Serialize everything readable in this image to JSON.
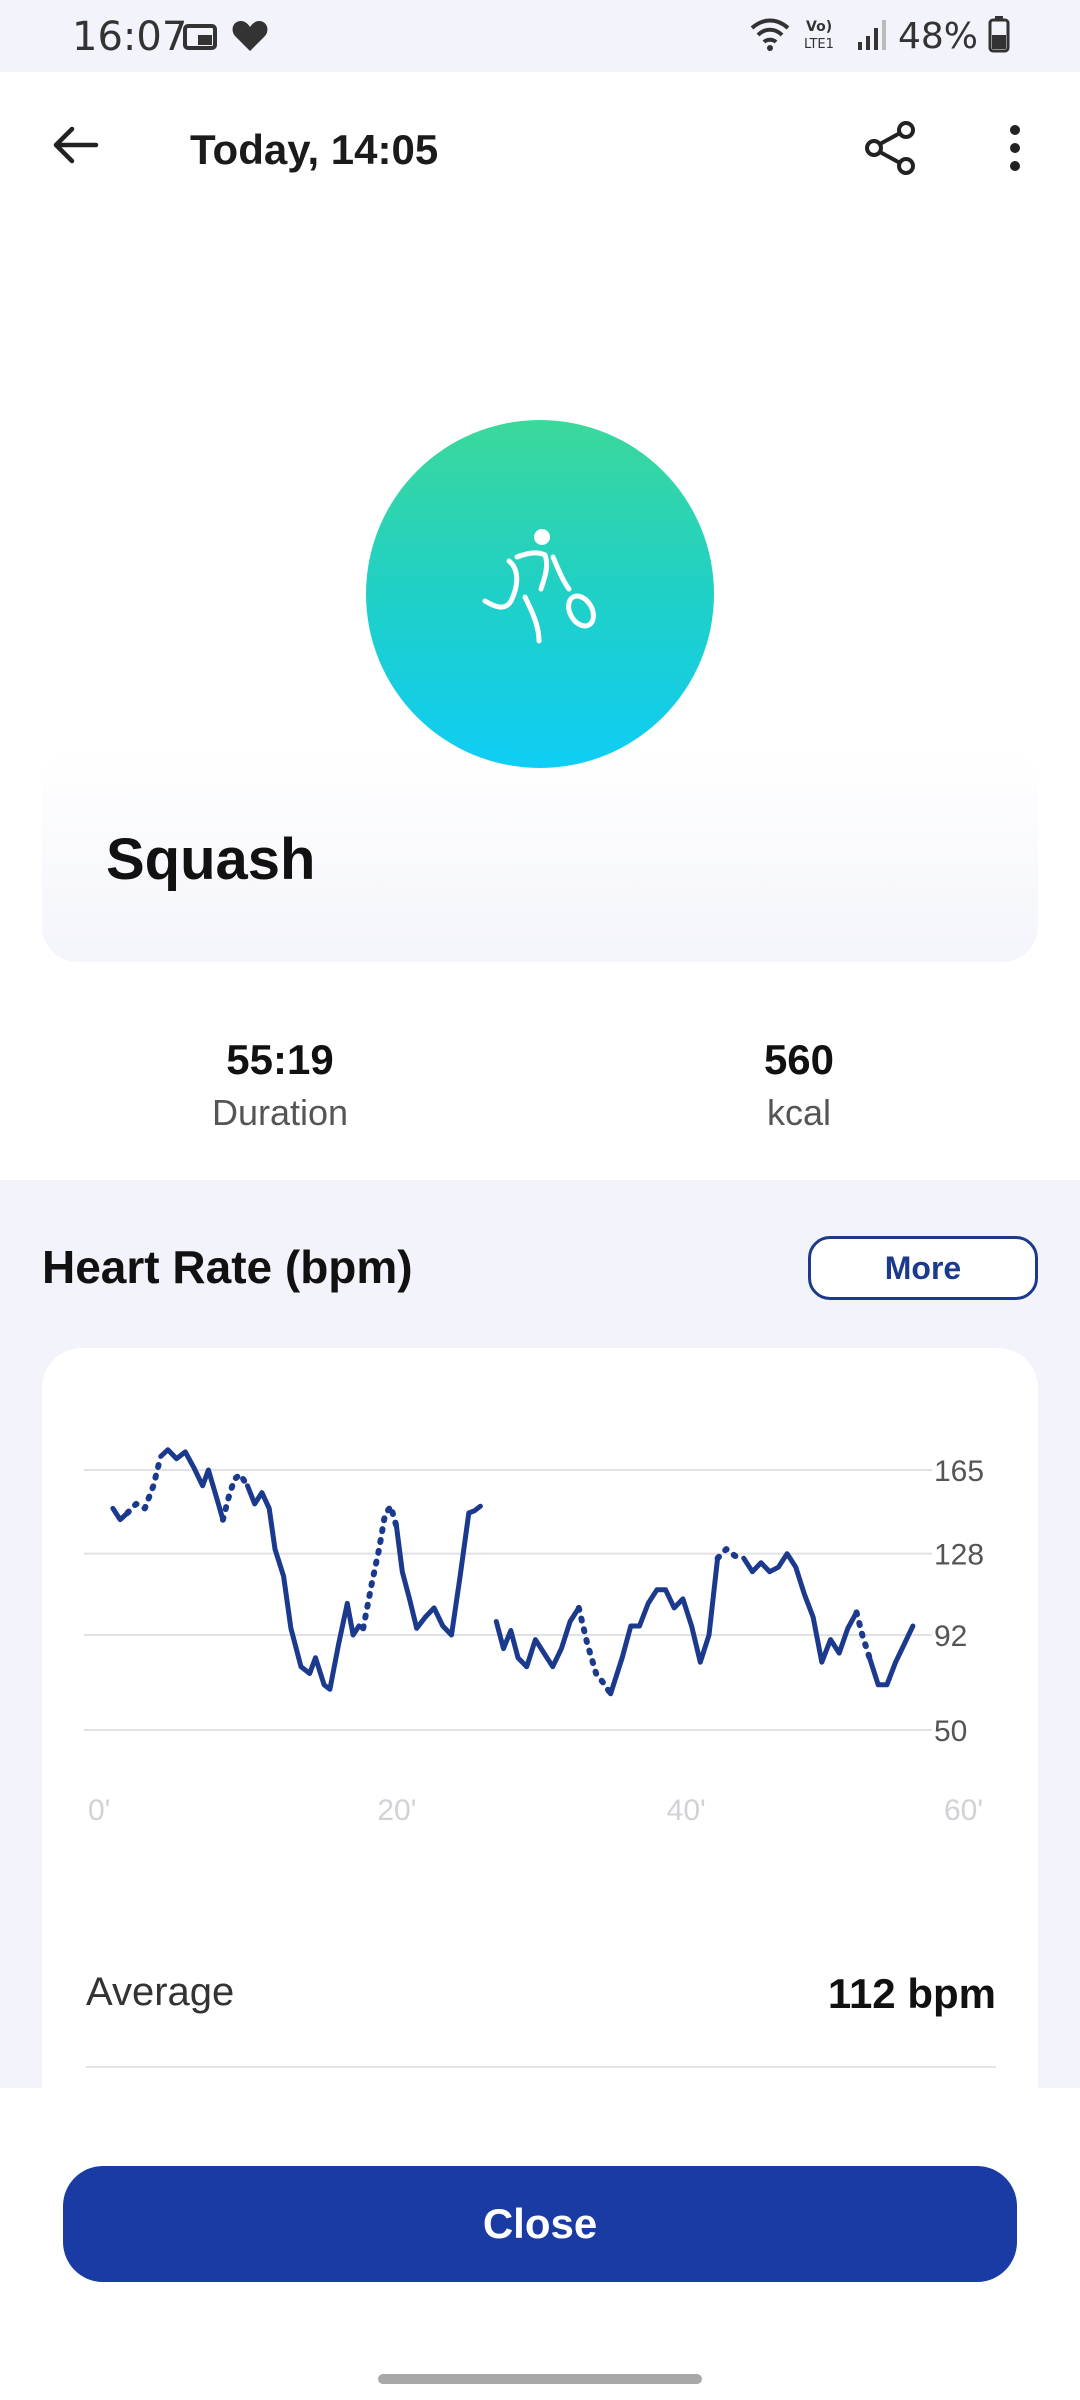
{
  "status_bar": {
    "time": "16:07",
    "battery": "48%",
    "icons": [
      "picture-in-notification-icon",
      "heart-icon",
      "wifi-icon",
      "volte-lte-icon",
      "signal-icon",
      "battery-icon"
    ],
    "network_label": "Vo) LTE1"
  },
  "app_bar": {
    "title": "Today, 14:05",
    "back_icon": "arrow-left-icon",
    "share_icon": "share-icon",
    "more_icon": "more-vertical-icon"
  },
  "activity": {
    "name": "Squash",
    "icon": "squash-player-icon",
    "gradient": [
      "#3bd89a",
      "#0fcdf5"
    ]
  },
  "stats": [
    {
      "value": "55:19",
      "label": "Duration"
    },
    {
      "value": "560",
      "label": "kcal"
    }
  ],
  "heart_rate": {
    "title": "Heart Rate (bpm)",
    "more_label": "More",
    "average_label": "Average",
    "average_value": "112 bpm"
  },
  "close_label": "Close",
  "colors": {
    "accent": "#1a3aa4",
    "line": "#1b3a8e",
    "background": "#f2f3fb"
  },
  "chart_data": {
    "type": "line",
    "x_unit": "minutes",
    "x_ticks": [
      "0'",
      "20'",
      "40'",
      "60'"
    ],
    "x_tick_values": [
      0,
      20,
      40,
      60
    ],
    "y_ticks": [
      50,
      92,
      128,
      165
    ],
    "xlim": [
      0,
      60
    ],
    "ylim": [
      50,
      165
    ],
    "grid": true,
    "series": [
      {
        "segments": [
          {
            "style": "solid",
            "points": [
              [
                2,
                148
              ],
              [
                2.5,
                143
              ],
              [
                3,
                146
              ]
            ]
          },
          {
            "style": "dotted",
            "points": [
              [
                3,
                146
              ],
              [
                3.6,
                150
              ],
              [
                4.2,
                148
              ],
              [
                4.8,
                158
              ],
              [
                5.3,
                171
              ]
            ]
          },
          {
            "style": "solid",
            "points": [
              [
                5.3,
                171
              ],
              [
                5.8,
                174
              ],
              [
                6.4,
                170
              ],
              [
                7,
                173
              ],
              [
                7.6,
                166
              ],
              [
                8.2,
                158
              ],
              [
                8.6,
                165
              ],
              [
                9.2,
                152
              ],
              [
                9.6,
                143
              ]
            ]
          },
          {
            "style": "dotted",
            "points": [
              [
                9.6,
                143
              ],
              [
                10,
                153
              ],
              [
                10.4,
                161
              ],
              [
                10.8,
                163
              ],
              [
                11.3,
                158
              ]
            ]
          },
          {
            "style": "solid",
            "points": [
              [
                11.3,
                158
              ],
              [
                11.8,
                150
              ],
              [
                12.3,
                155
              ],
              [
                12.8,
                148
              ],
              [
                13.2,
                130
              ],
              [
                13.8,
                118
              ],
              [
                14.3,
                95
              ],
              [
                15,
                78
              ],
              [
                15.6,
                75
              ],
              [
                16,
                82
              ],
              [
                16.6,
                70
              ],
              [
                17,
                68
              ],
              [
                17.6,
                88
              ],
              [
                18.2,
                106
              ],
              [
                18.6,
                92
              ],
              [
                19,
                96
              ],
              [
                19.3,
                95
              ]
            ]
          },
          {
            "style": "dotted",
            "points": [
              [
                19.3,
                95
              ],
              [
                19.9,
                115
              ],
              [
                20.4,
                130
              ],
              [
                20.8,
                145
              ],
              [
                21.2,
                149
              ],
              [
                21.6,
                140
              ]
            ]
          },
          {
            "style": "solid",
            "points": [
              [
                21.6,
                140
              ],
              [
                22,
                120
              ],
              [
                22.5,
                108
              ],
              [
                23,
                95
              ],
              [
                23.6,
                100
              ],
              [
                24.2,
                104
              ],
              [
                24.8,
                96
              ],
              [
                25.4,
                92
              ],
              [
                26,
                118
              ],
              [
                26.6,
                146
              ],
              [
                27,
                147
              ],
              [
                27.4,
                149
              ]
            ]
          },
          {
            "style": "solid",
            "points": [
              [
                28.5,
                98
              ],
              [
                29,
                86
              ],
              [
                29.5,
                94
              ],
              [
                30,
                82
              ],
              [
                30.6,
                78
              ],
              [
                31.2,
                90
              ],
              [
                31.8,
                84
              ],
              [
                32.4,
                78
              ],
              [
                33,
                86
              ],
              [
                33.6,
                98
              ],
              [
                34.2,
                104
              ]
            ]
          },
          {
            "style": "dotted",
            "points": [
              [
                34.2,
                104
              ],
              [
                34.8,
                88
              ],
              [
                35.4,
                75
              ],
              [
                36,
                70
              ],
              [
                36.4,
                66
              ]
            ]
          },
          {
            "style": "solid",
            "points": [
              [
                36.4,
                66
              ],
              [
                37.2,
                82
              ],
              [
                37.8,
                96
              ],
              [
                38.4,
                96
              ],
              [
                39,
                106
              ],
              [
                39.6,
                112
              ],
              [
                40.2,
                112
              ],
              [
                40.8,
                104
              ],
              [
                41.4,
                108
              ],
              [
                42,
                96
              ],
              [
                42.6,
                80
              ],
              [
                43.2,
                92
              ],
              [
                43.8,
                126
              ]
            ]
          },
          {
            "style": "dotted",
            "points": [
              [
                43.8,
                126
              ],
              [
                44.4,
                130
              ],
              [
                45,
                127
              ],
              [
                45.6,
                126
              ]
            ]
          },
          {
            "style": "solid",
            "points": [
              [
                45.6,
                126
              ],
              [
                46.2,
                120
              ],
              [
                46.8,
                124
              ],
              [
                47.4,
                120
              ],
              [
                48,
                122
              ],
              [
                48.6,
                128
              ],
              [
                49.2,
                122
              ],
              [
                49.8,
                110
              ],
              [
                50.4,
                100
              ],
              [
                51,
                80
              ],
              [
                51.6,
                90
              ],
              [
                52.2,
                84
              ],
              [
                52.8,
                95
              ],
              [
                53.4,
                102
              ]
            ]
          },
          {
            "style": "dotted",
            "points": [
              [
                53.4,
                102
              ],
              [
                53.8,
                92
              ],
              [
                54.3,
                82
              ]
            ]
          },
          {
            "style": "solid",
            "points": [
              [
                54.3,
                82
              ],
              [
                54.9,
                70
              ],
              [
                55.5,
                70
              ],
              [
                56.1,
                80
              ],
              [
                56.7,
                88
              ],
              [
                57.3,
                96
              ]
            ]
          }
        ]
      }
    ]
  }
}
